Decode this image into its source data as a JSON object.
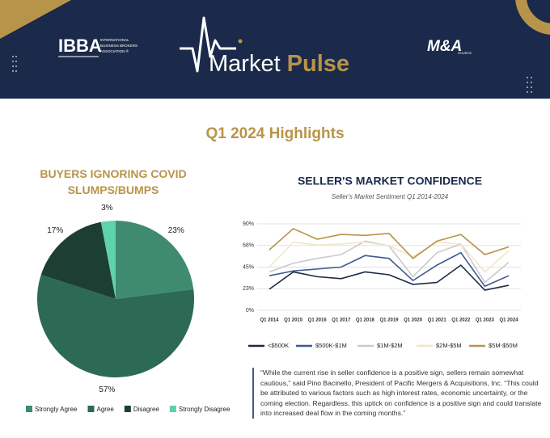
{
  "header": {
    "ibba": "IBBA",
    "ibba_sub": [
      "INTERNATIONAL",
      "BUSINESS BROKERS",
      "ASSOCIATION ®"
    ],
    "brand_1": "Market",
    "brand_2": "Pulse",
    "ma_logo": "M&A",
    "ma_sub": "SOURCE"
  },
  "headline": "Q1 2024 Highlights",
  "chart_data": [
    {
      "type": "pie",
      "title": "BUYERS IGNORING COVID SLUMPS/BUMPS",
      "categories": [
        "Strongly Agree",
        "Agree",
        "Disagree",
        "Strongly Disagree"
      ],
      "values": [
        23,
        57,
        17,
        3
      ],
      "value_labels": [
        "23%",
        "57%",
        "17%",
        "3%"
      ],
      "colors": [
        "#3e8b6f",
        "#2d6a55",
        "#1d3f33",
        "#5ed1ad"
      ],
      "legend": "bottom"
    },
    {
      "type": "line",
      "title": "SELLER'S MARKET CONFIDENCE",
      "subtitle": "Seller's Market Sentiment Q1 2014-2024",
      "categories": [
        "Q1 2014",
        "Q1 2015",
        "Q1 2016",
        "Q1 2017",
        "Q1 2018",
        "Q1 2019",
        "Q1 2020",
        "Q1 2021",
        "Q1 2022",
        "Q1 2023",
        "Q1 2024"
      ],
      "series": [
        {
          "name": "<$500K",
          "color": "#1c2a44",
          "values": [
            22,
            40,
            35,
            33,
            40,
            37,
            27,
            29,
            47,
            21,
            26
          ]
        },
        {
          "name": "$500K-$1M",
          "color": "#3b5b8e",
          "values": [
            36,
            41,
            43,
            45,
            57,
            54,
            31,
            47,
            60,
            25,
            36
          ]
        },
        {
          "name": "$1M-$2M",
          "color": "#c9c9cf",
          "values": [
            40,
            49,
            54,
            58,
            72,
            67,
            35,
            60,
            69,
            29,
            50
          ]
        },
        {
          "name": "$2M-$5M",
          "color": "#f1e6c6",
          "values": [
            45,
            71,
            68,
            69,
            71,
            67,
            56,
            71,
            69,
            40,
            62
          ]
        },
        {
          "name": "$5M-$50M",
          "color": "#b8944a",
          "values": [
            63,
            85,
            74,
            79,
            78,
            80,
            54,
            72,
            79,
            58,
            66
          ]
        }
      ],
      "ylim": [
        0,
        90
      ],
      "yticks": [
        {
          "value": 0,
          "label": "0%"
        },
        {
          "value": 22.5,
          "label": "23%"
        },
        {
          "value": 45,
          "label": "45%"
        },
        {
          "value": 67.5,
          "label": "68%"
        },
        {
          "value": 90,
          "label": "90%"
        }
      ],
      "grid": true,
      "legend": "bottom"
    }
  ],
  "quote": "“While the current rise in seller confidence is a positive sign, sellers remain somewhat cautious,” said Pino Bacinello, President of Pacific Mergers & Acquisitions, Inc. “This could be attributed to various factors such as high interest rates, economic uncertainty, or the coming election. Regardless, this uptick on confidence is a positive sign and could translate into increased deal flow in the coming months.”"
}
